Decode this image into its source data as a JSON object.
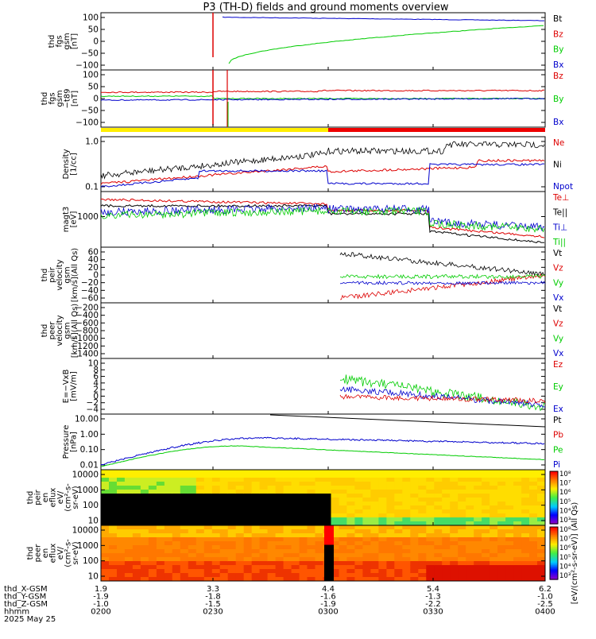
{
  "title": "P3 (TH-D) fields and ground moments overview",
  "colors": {
    "black": "#000000",
    "red": "#dd0000",
    "green": "#00cc00",
    "blue": "#0000cc",
    "yellow": "#ffee00",
    "redbar": "#ee0000"
  },
  "chart_data": {
    "type": "line",
    "xaxis": {
      "rows": [
        {
          "label": "thd_X-GSM",
          "values": [
            "1.9",
            "3.3",
            "4.4",
            "5.4",
            "6.2"
          ]
        },
        {
          "label": "thd_Y-GSM",
          "values": [
            "-1.9",
            "-1.8",
            "-1.6",
            "-1.3",
            "-1.0"
          ]
        },
        {
          "label": "thd_Z-GSM",
          "values": [
            "-1.0",
            "-1.5",
            "-1.9",
            "-2.2",
            "-2.5"
          ]
        },
        {
          "label": "hhmm",
          "values": [
            "0200",
            "0230",
            "0300",
            "0330",
            "0400"
          ]
        }
      ],
      "date": "2025 May 25"
    },
    "panels": [
      {
        "id": "fgs-gsm",
        "ylabel": [
          "thd",
          "fgs",
          "gsm",
          "[nT]"
        ],
        "ticks": [
          "100",
          "50",
          "0",
          "−50",
          "−100"
        ],
        "ylim": [
          -100,
          110
        ],
        "legend": [
          "Bt",
          "Bz",
          "By",
          "Bx"
        ],
        "legend_colors": [
          "#000000",
          "#dd0000",
          "#00cc00",
          "#0000cc"
        ]
      },
      {
        "id": "fgs-gsm-t89",
        "ylabel": [
          "thd",
          "fgs",
          "gsm",
          "−t89",
          "[nT]"
        ],
        "ticks": [
          "100",
          "50",
          "0",
          "−50",
          "−100"
        ],
        "ylim": [
          -120,
          120
        ],
        "legend": [
          "Bz",
          "By",
          "Bx"
        ],
        "legend_colors": [
          "#dd0000",
          "#00cc00",
          "#0000cc"
        ]
      },
      {
        "id": "density",
        "ylabel": [
          "Density",
          "[1/cc]"
        ],
        "ticks": [
          "1.0",
          "0.1"
        ],
        "scale": "log",
        "legend": [
          "Ne",
          "Ni",
          "Npot"
        ],
        "legend_colors": [
          "#dd0000",
          "#000000",
          "#0000cc"
        ]
      },
      {
        "id": "temperature",
        "ylabel": [
          "magt3",
          "[eV]"
        ],
        "ticks": [
          "1000"
        ],
        "scale": "log",
        "legend": [
          "Te⊥",
          "Te||",
          "Ti⊥",
          "Ti||"
        ],
        "legend_colors": [
          "#dd0000",
          "#000000",
          "#0000cc",
          "#00cc00"
        ]
      },
      {
        "id": "peir-velocity",
        "ylabel": [
          "thd",
          "peir",
          "velocity",
          "gsm",
          "[km/s](All Qs)"
        ],
        "ticks": [
          "60",
          "40",
          "20",
          "0",
          "−20",
          "−40",
          "−60"
        ],
        "ylim": [
          -70,
          70
        ],
        "legend": [
          "Vt",
          "Vz",
          "Vy",
          "Vx"
        ],
        "legend_colors": [
          "#000000",
          "#dd0000",
          "#00cc00",
          "#0000cc"
        ]
      },
      {
        "id": "peer-velocity",
        "ylabel": [
          "thd",
          "peer",
          "velocity",
          "gsm",
          "[km/s](All Qs)"
        ],
        "ticks": [
          "−200",
          "−400",
          "−600",
          "−800",
          "−1000",
          "−1200",
          "−1400"
        ],
        "ylim": [
          -1400,
          0
        ],
        "legend": [
          "Vt",
          "Vz",
          "Vy",
          "Vx"
        ],
        "legend_colors": [
          "#000000",
          "#dd0000",
          "#00cc00",
          "#0000cc"
        ]
      },
      {
        "id": "efield",
        "ylabel": [
          "E=−VxB",
          "[mV/m]"
        ],
        "ticks": [
          "10",
          "8",
          "6",
          "4",
          "2",
          "0",
          "−2",
          "−4"
        ],
        "ylim": [
          -5,
          10
        ],
        "legend": [
          "Ez",
          "Ey",
          "Ex"
        ],
        "legend_colors": [
          "#dd0000",
          "#00cc00",
          "#0000cc"
        ]
      },
      {
        "id": "pressure",
        "ylabel": [
          "Pressure",
          "[nPa]"
        ],
        "ticks": [
          "10.00",
          "1.00",
          "0.10",
          "0.01"
        ],
        "scale": "log",
        "legend": [
          "Pt",
          "Pb",
          "Pe",
          "Pi"
        ],
        "legend_colors": [
          "#000000",
          "#dd0000",
          "#00cc00",
          "#0000cc"
        ]
      },
      {
        "id": "peir-spec",
        "ylabel": [
          "thd",
          "peir",
          "en",
          "eflux",
          "eV/",
          "(cm²-s-",
          "sr-eV)"
        ],
        "ticks": [
          "10000",
          "1000",
          "100",
          "10"
        ],
        "scale": "log",
        "type": "heatmap"
      },
      {
        "id": "peer-spec",
        "ylabel": [
          "thd",
          "peer",
          "en",
          "eflux",
          "eV/",
          "(cm²-s-",
          "sr-eV)"
        ],
        "ticks": [
          "10000",
          "1000",
          "100",
          "10"
        ],
        "scale": "log",
        "type": "heatmap"
      }
    ],
    "colorbar": {
      "label": "[eV/(cm²-s-sr-eV)] (All Qs)",
      "ticks": [
        "10⁸",
        "10⁷",
        "10⁶",
        "10⁵",
        "10⁴",
        "10³"
      ]
    },
    "mode_bar": {
      "segments": [
        {
          "color": "yellow",
          "end_time": "0300"
        },
        {
          "color": "red",
          "end_time": "0400"
        }
      ]
    }
  }
}
